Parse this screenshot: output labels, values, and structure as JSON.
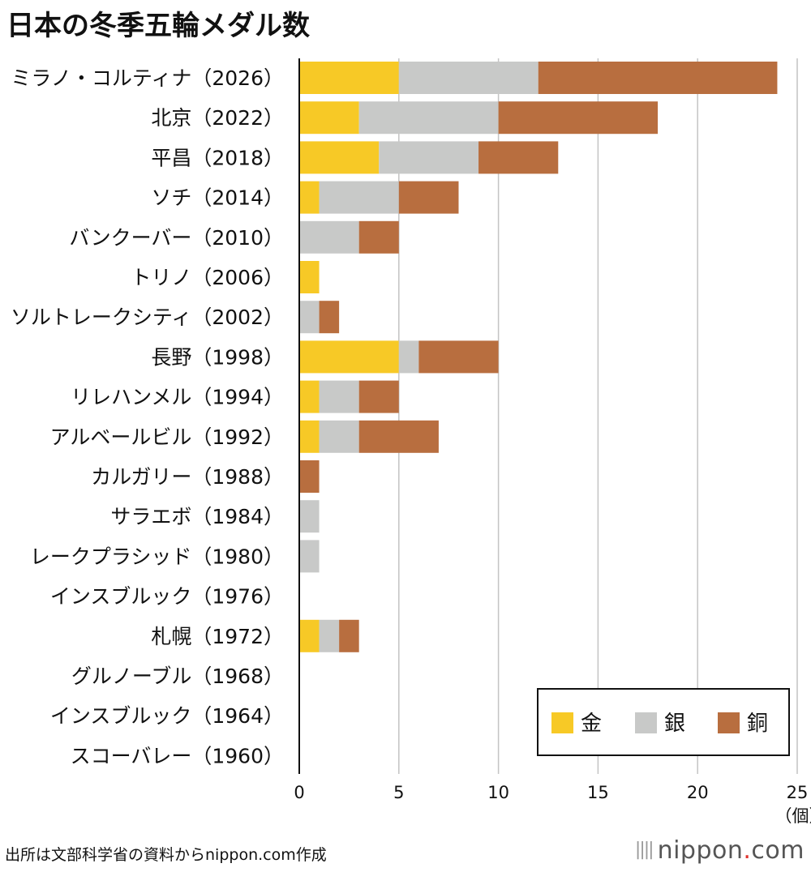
{
  "chart_data": {
    "type": "bar",
    "orientation": "horizontal",
    "stacked": true,
    "title": "日本の冬季五輪メダル数",
    "unit": "（個）",
    "xlim": [
      0,
      25
    ],
    "xticks": [
      0,
      5,
      10,
      15,
      20,
      25
    ],
    "grid": true,
    "legend_position": "bottom-right",
    "categories": [
      "ミラノ・コルティナ（2026）",
      "北京（2022）",
      "平昌（2018）",
      "ソチ（2014）",
      "バンクーバー（2010）",
      "トリノ（2006）",
      "ソルトレークシティ（2002）",
      "長野（1998）",
      "リレハンメル（1994）",
      "アルベールビル（1992）",
      "カルガリー（1988）",
      "サラエボ（1984）",
      "レークプラシッド（1980）",
      "インスブルック（1976）",
      "札幌（1972）",
      "グルノーブル（1968）",
      "インスブルック（1964）",
      "スコーバレー（1960）"
    ],
    "series": [
      {
        "name": "金",
        "color": "#f7c926",
        "values": [
          5,
          3,
          4,
          1,
          0,
          1,
          0,
          5,
          1,
          1,
          0,
          0,
          0,
          0,
          1,
          0,
          0,
          0
        ]
      },
      {
        "name": "銀",
        "color": "#c8c9c8",
        "values": [
          7,
          7,
          5,
          4,
          3,
          0,
          1,
          1,
          2,
          2,
          0,
          1,
          1,
          0,
          1,
          0,
          0,
          0
        ]
      },
      {
        "name": "銅",
        "color": "#b86e3f",
        "values": [
          12,
          8,
          4,
          3,
          2,
          0,
          1,
          4,
          2,
          4,
          1,
          0,
          0,
          0,
          1,
          0,
          0,
          0
        ]
      }
    ]
  },
  "footer": {
    "source": "出所は文部科学省の資料からnippon.com作成",
    "brand_bars": "||||",
    "brand_name": "nippon",
    "brand_dot": ".",
    "brand_tld": "com"
  }
}
